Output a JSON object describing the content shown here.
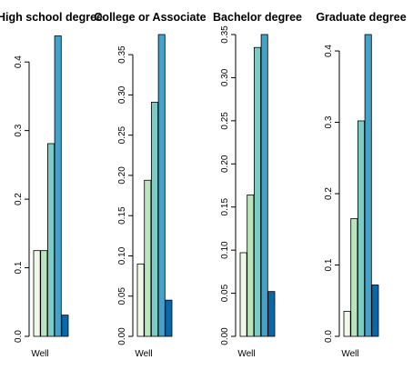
{
  "chart_data": [
    {
      "type": "bar",
      "title": "High school degree",
      "xlabel": "Well",
      "ylim": [
        0,
        0.44
      ],
      "yticks": [
        0.0,
        0.1,
        0.2,
        0.3,
        0.4
      ],
      "ytick_labels": [
        "0.0",
        "0.1",
        "0.2",
        "0.3",
        "0.4"
      ],
      "values": [
        0.125,
        0.125,
        0.281,
        0.438,
        0.031
      ],
      "colors": [
        "#f0f9e8",
        "#bae4bc",
        "#7bccc4",
        "#43a2ca",
        "#0868ac"
      ]
    },
    {
      "type": "bar",
      "title": "College or Associate",
      "xlabel": "Well",
      "ylim": [
        0,
        0.375
      ],
      "yticks": [
        0.0,
        0.05,
        0.1,
        0.15,
        0.2,
        0.25,
        0.3,
        0.35
      ],
      "ytick_labels": [
        "0.00",
        "0.05",
        "0.10",
        "0.15",
        "0.20",
        "0.25",
        "0.30",
        "0.35"
      ],
      "values": [
        0.09,
        0.194,
        0.291,
        0.375,
        0.045
      ],
      "colors": [
        "#f0f9e8",
        "#bae4bc",
        "#7bccc4",
        "#43a2ca",
        "#0868ac"
      ]
    },
    {
      "type": "bar",
      "title": "Bachelor degree",
      "xlabel": "Well",
      "ylim": [
        0,
        0.35
      ],
      "yticks": [
        0.0,
        0.05,
        0.1,
        0.15,
        0.2,
        0.25,
        0.3,
        0.35
      ],
      "ytick_labels": [
        "0.00",
        "0.05",
        "0.10",
        "0.15",
        "0.20",
        "0.25",
        "0.30",
        "0.35"
      ],
      "values": [
        0.097,
        0.164,
        0.335,
        0.35,
        0.052
      ],
      "colors": [
        "#f0f9e8",
        "#bae4bc",
        "#7bccc4",
        "#43a2ca",
        "#0868ac"
      ]
    },
    {
      "type": "bar",
      "title": "Graduate degree",
      "xlabel": "Well",
      "ylim": [
        0,
        0.423
      ],
      "yticks": [
        0.0,
        0.1,
        0.2,
        0.3,
        0.4
      ],
      "ytick_labels": [
        "0.0",
        "0.1",
        "0.2",
        "0.3",
        "0.4"
      ],
      "values": [
        0.035,
        0.165,
        0.302,
        0.423,
        0.072
      ],
      "colors": [
        "#f0f9e8",
        "#bae4bc",
        "#7bccc4",
        "#43a2ca",
        "#0868ac"
      ]
    }
  ]
}
